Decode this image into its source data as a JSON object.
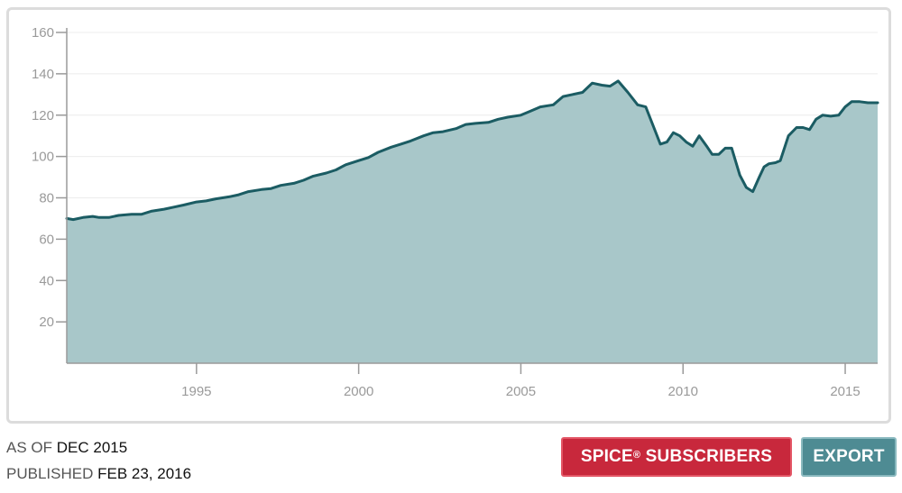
{
  "chart_data": {
    "type": "area",
    "title": "",
    "xlabel": "",
    "ylabel": "",
    "xlim": [
      1991.0,
      2016.0
    ],
    "ylim": [
      0,
      160
    ],
    "yticks": [
      20,
      40,
      60,
      80,
      100,
      120,
      140,
      160
    ],
    "xticks": [
      1995,
      2000,
      2005,
      2010,
      2015
    ],
    "grid": true,
    "legend": "none",
    "colors": {
      "fill": "#a8c7c9",
      "line": "#1b5c63",
      "grid": "#ececec",
      "axis": "#9a9a9a"
    },
    "series": [
      {
        "x": [
          1991.0,
          1991.2,
          1991.5,
          1991.8,
          1992.0,
          1992.3,
          1992.6,
          1993.0,
          1993.3,
          1993.6,
          1994.0,
          1994.3,
          1994.6,
          1995.0,
          1995.3,
          1995.6,
          1996.0,
          1996.3,
          1996.6,
          1997.0,
          1997.3,
          1997.6,
          1998.0,
          1998.3,
          1998.6,
          1999.0,
          1999.3,
          1999.6,
          2000.0,
          2000.3,
          2000.6,
          2001.0,
          2001.3,
          2001.6,
          2002.0,
          2002.3,
          2002.6,
          2003.0,
          2003.3,
          2003.6,
          2004.0,
          2004.3,
          2004.6,
          2005.0,
          2005.3,
          2005.6,
          2006.0,
          2006.3,
          2006.6,
          2006.9,
          2007.2,
          2007.5,
          2007.75,
          2008.0,
          2008.3,
          2008.6,
          2008.85,
          2009.1,
          2009.3,
          2009.5,
          2009.7,
          2009.9,
          2010.1,
          2010.3,
          2010.5,
          2010.75,
          2010.9,
          2011.1,
          2011.3,
          2011.5,
          2011.75,
          2011.95,
          2012.15,
          2012.35,
          2012.5,
          2012.65,
          2012.85,
          2013.0,
          2013.25,
          2013.5,
          2013.7,
          2013.9,
          2014.1,
          2014.3,
          2014.55,
          2014.8,
          2015.0,
          2015.2,
          2015.45,
          2015.7,
          2015.9,
          2016.0
        ],
        "values": [
          70,
          69.5,
          70.5,
          71,
          70.5,
          70.5,
          71.5,
          72,
          72,
          73.5,
          74.5,
          75.5,
          76.5,
          78,
          78.5,
          79.5,
          80.5,
          81.5,
          83,
          84,
          84.5,
          86,
          87,
          88.5,
          90.5,
          92,
          93.5,
          96,
          98,
          99.5,
          102,
          104.5,
          106,
          107.5,
          110,
          111.5,
          112,
          113.5,
          115.5,
          116,
          116.5,
          118,
          119,
          120,
          122,
          124,
          125,
          129,
          130,
          131,
          135.5,
          134.5,
          134,
          136.5,
          131,
          125,
          124,
          114,
          106,
          107,
          111.5,
          110,
          107,
          105,
          110,
          104.5,
          101,
          101,
          104,
          104,
          91,
          85,
          83,
          90,
          95,
          96.5,
          97,
          98,
          110,
          114,
          114,
          113,
          118,
          120,
          119.5,
          120,
          124,
          126.5,
          126.5,
          126,
          126,
          126
        ]
      }
    ]
  },
  "footer": {
    "as_of_label": "AS OF",
    "as_of_value": "DEC 2015",
    "published_label": "PUBLISHED",
    "published_value": "FEB 23, 2016"
  },
  "buttons": {
    "spice_label": "SPICE",
    "spice_reg": "®",
    "spice_label_suffix": " SUBSCRIBERS",
    "export_label": "EXPORT"
  }
}
